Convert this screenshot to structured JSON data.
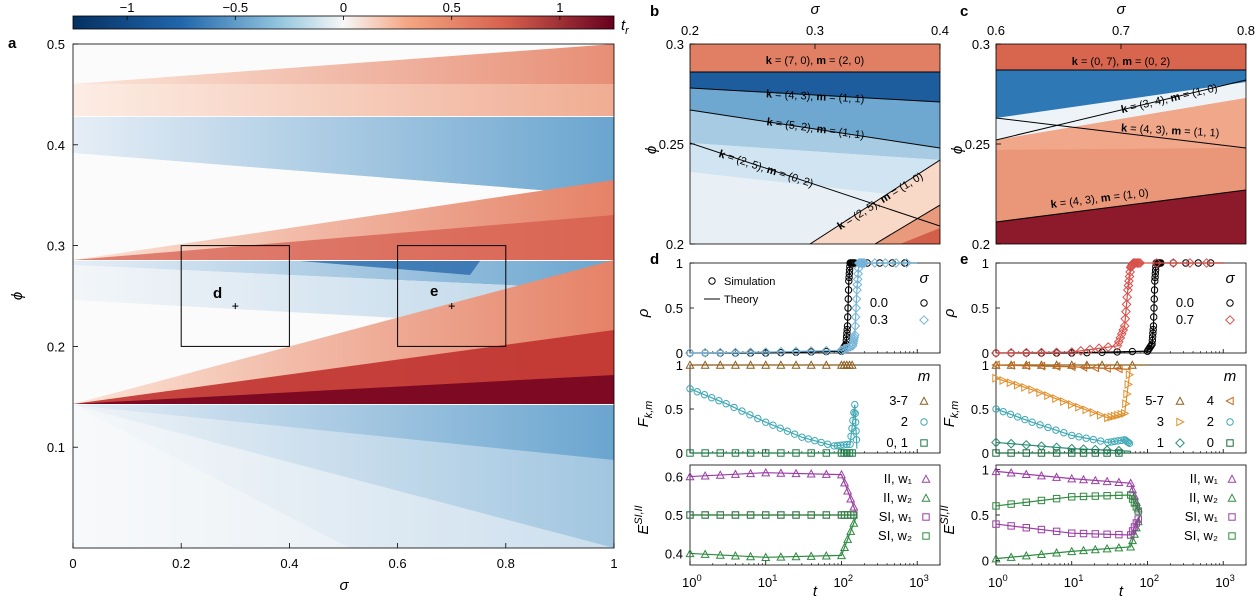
{
  "chart_data": [
    {
      "panel": "a",
      "type": "heatmap",
      "xlabel": "σ",
      "ylabel": "ϕ",
      "colorbar_label": "t_r",
      "colorbar_ticks": [
        "−1",
        "−0.5",
        "0",
        "0.5",
        "1"
      ],
      "colorbar_values": [
        -1,
        -0.5,
        0,
        0.5,
        1
      ],
      "colorbar_range": [
        -1.25,
        1.25
      ],
      "xlim": [
        0,
        1
      ],
      "ylim": [
        0,
        0.5
      ],
      "xticks": [
        0,
        0.2,
        0.4,
        0.6,
        0.8,
        1
      ],
      "xtick_labels": [
        "0",
        "0.2",
        "0.4",
        "0.6",
        "0.8",
        "1"
      ],
      "yticks": [
        0.1,
        0.2,
        0.3,
        0.4,
        0.5
      ],
      "ytick_labels": [
        "0.1",
        "0.2",
        "0.3",
        "0.4",
        "0.5"
      ],
      "boxes": [
        {
          "label": "b",
          "x": [
            0.2,
            0.4
          ],
          "y": [
            0.2,
            0.3
          ]
        },
        {
          "label": "c",
          "x": [
            0.6,
            0.8
          ],
          "y": [
            0.2,
            0.3
          ]
        }
      ],
      "points": [
        {
          "label": "d",
          "x": 0.3,
          "y": 0.24
        },
        {
          "label": "e",
          "x": 0.7,
          "y": 0.24
        }
      ]
    },
    {
      "panel": "b",
      "type": "heatmap",
      "xlabel": "σ",
      "ylabel": "ϕ",
      "xlim": [
        0.2,
        0.4
      ],
      "ylim": [
        0.2,
        0.3
      ],
      "xticks": [
        0.2,
        0.3,
        0.4
      ],
      "xtick_labels": [
        "0.2",
        "0.3",
        "0.4"
      ],
      "yticks": [
        0.2,
        0.25,
        0.3
      ],
      "ytick_labels": [
        "0.2",
        "0.25",
        "0.3"
      ],
      "annotations": [
        {
          "k": "(7, 0)",
          "m": "(2, 0)"
        },
        {
          "k": "(4, 3)",
          "m": "(1, 1)"
        },
        {
          "k": "(5, 2)",
          "m": "(1, 1)"
        },
        {
          "k": "(2, 5)",
          "m": "(0, 2)"
        },
        {
          "k": "(2, 5)",
          "m": "(1, 0)"
        }
      ]
    },
    {
      "panel": "c",
      "type": "heatmap",
      "xlabel": "σ",
      "ylabel": "ϕ",
      "xlim": [
        0.6,
        0.8
      ],
      "ylim": [
        0.2,
        0.3
      ],
      "xticks": [
        0.6,
        0.7,
        0.8
      ],
      "xtick_labels": [
        "0.6",
        "0.7",
        "0.8"
      ],
      "yticks": [
        0.2,
        0.25,
        0.3
      ],
      "ytick_labels": [
        "0.2",
        "0.25",
        "0.3"
      ],
      "annotations": [
        {
          "k": "(0, 7)",
          "m": "(0, 2)"
        },
        {
          "k": "(3, 4)",
          "m": "(1, 0)"
        },
        {
          "k": "(4, 3)",
          "m": "(1, 1)"
        },
        {
          "k": "(4, 3)",
          "m": "(1, 0)"
        }
      ]
    },
    {
      "panel": "d",
      "type": "line",
      "xlabel": "t",
      "x_scale": "log",
      "xlim": [
        1,
        2000
      ],
      "xtick_labels": [
        "10^0",
        "10^1",
        "10^2",
        "10^3"
      ],
      "subplots": [
        {
          "ylabel": "ρ",
          "ylim": [
            0,
            1
          ],
          "yticks": [
            "0",
            "0.5",
            "1"
          ],
          "legend_left": [
            "Simulation",
            "Theory"
          ],
          "legend_title": "σ",
          "series": [
            {
              "name": "0.0",
              "x": [
                1,
                10,
                100,
                115,
                120,
                125,
                130,
                150,
                1000
              ],
              "y": [
                0,
                0,
                0.02,
                0.1,
                0.3,
                0.8,
                1,
                1,
                1
              ]
            },
            {
              "name": "0.3",
              "x": [
                1,
                10,
                100,
                140,
                150,
                160,
                170,
                200,
                1000
              ],
              "y": [
                0,
                0.01,
                0.03,
                0.08,
                0.2,
                0.7,
                1,
                1,
                1
              ]
            }
          ]
        },
        {
          "ylabel": "F_{k,m}",
          "ylim": [
            0,
            1
          ],
          "yticks": [
            "0",
            "0.5",
            "1"
          ],
          "legend_title": "m",
          "series": [
            {
              "name": "3-7",
              "x": [
                1,
                10,
                100,
                150
              ],
              "y": [
                1,
                1,
                1,
                1
              ]
            },
            {
              "name": "2",
              "x": [
                1,
                3,
                10,
                30,
                80,
                130,
                150,
                160
              ],
              "y": [
                0.73,
                0.56,
                0.35,
                0.18,
                0.08,
                0.1,
                0.55,
                0.05
              ]
            },
            {
              "name": "0, 1",
              "x": [
                1,
                10,
                100,
                150
              ],
              "y": [
                0,
                0,
                0,
                0
              ]
            }
          ]
        },
        {
          "ylabel": "E^{SI,II}",
          "ylim": [
            0.37,
            0.63
          ],
          "yticks": [
            "0.4",
            "0.5",
            "0.6"
          ],
          "series": [
            {
              "name": "II, w₁",
              "x": [
                1,
                10,
                100,
                160
              ],
              "y": [
                0.6,
                0.61,
                0.605,
                0.5
              ]
            },
            {
              "name": "II, w₂",
              "x": [
                1,
                10,
                100,
                160
              ],
              "y": [
                0.4,
                0.39,
                0.395,
                0.5
              ]
            },
            {
              "name": "SI, w₁",
              "x": [
                1,
                10,
                100,
                160
              ],
              "y": [
                0.5,
                0.5,
                0.5,
                0.5
              ]
            },
            {
              "name": "SI, w₂",
              "x": [
                1,
                10,
                100,
                160
              ],
              "y": [
                0.5,
                0.5,
                0.5,
                0.5
              ]
            }
          ]
        }
      ]
    },
    {
      "panel": "e",
      "type": "line",
      "xlabel": "t",
      "x_scale": "log",
      "xlim": [
        1,
        2000
      ],
      "xtick_labels": [
        "10^0",
        "10^1",
        "10^2",
        "10^3"
      ],
      "subplots": [
        {
          "ylabel": "ρ",
          "ylim": [
            0,
            1
          ],
          "yticks": [
            "0",
            "0.5",
            "1"
          ],
          "legend_title": "σ",
          "series": [
            {
              "name": "0.0",
              "x": [
                1,
                10,
                100,
                115,
                120,
                125,
                130,
                150,
                1000
              ],
              "y": [
                0,
                0,
                0.02,
                0.1,
                0.3,
                0.8,
                1,
                1,
                1
              ]
            },
            {
              "name": "0.7",
              "x": [
                1,
                10,
                40,
                50,
                55,
                60,
                65,
                80,
                1000
              ],
              "y": [
                0,
                0.01,
                0.08,
                0.3,
                0.7,
                0.95,
                1,
                1,
                1
              ]
            }
          ]
        },
        {
          "ylabel": "F_{k,m}",
          "ylim": [
            0,
            1
          ],
          "yticks": [
            "0",
            "0.5",
            "1"
          ],
          "legend_title": "m",
          "series": [
            {
              "name": "5-7",
              "x": [
                1,
                10,
                100
              ],
              "y": [
                1,
                1,
                1
              ]
            },
            {
              "name": "4",
              "x": [
                1,
                10,
                60
              ],
              "y": [
                1,
                0.98,
                0.95
              ]
            },
            {
              "name": "3",
              "x": [
                1,
                3,
                10,
                30,
                50,
                60
              ],
              "y": [
                0.85,
                0.72,
                0.55,
                0.4,
                0.45,
                1
              ]
            },
            {
              "name": "2",
              "x": [
                1,
                3,
                10,
                30,
                50,
                60
              ],
              "y": [
                0.5,
                0.35,
                0.2,
                0.12,
                0.15,
                0.1
              ]
            },
            {
              "name": "1",
              "x": [
                1,
                10,
                60
              ],
              "y": [
                0.12,
                0.05,
                0.02
              ]
            },
            {
              "name": "0",
              "x": [
                1,
                10,
                60
              ],
              "y": [
                0,
                0,
                0
              ]
            }
          ]
        },
        {
          "ylabel": "E^{SI,II}",
          "ylim": [
            -0.05,
            1.05
          ],
          "yticks": [
            "0",
            "0.5",
            "1"
          ],
          "series": [
            {
              "name": "II, w₁",
              "x": [
                1,
                10,
                60,
                80
              ],
              "y": [
                0.98,
                0.9,
                0.85,
                0.5
              ]
            },
            {
              "name": "II, w₂",
              "x": [
                1,
                10,
                60,
                80
              ],
              "y": [
                0.02,
                0.1,
                0.15,
                0.5
              ]
            },
            {
              "name": "SI, w₁",
              "x": [
                1,
                10,
                60,
                80
              ],
              "y": [
                0.4,
                0.3,
                0.28,
                0.5
              ]
            },
            {
              "name": "SI, w₂",
              "x": [
                1,
                10,
                60,
                80
              ],
              "y": [
                0.6,
                0.7,
                0.72,
                0.5
              ]
            }
          ]
        }
      ]
    }
  ]
}
